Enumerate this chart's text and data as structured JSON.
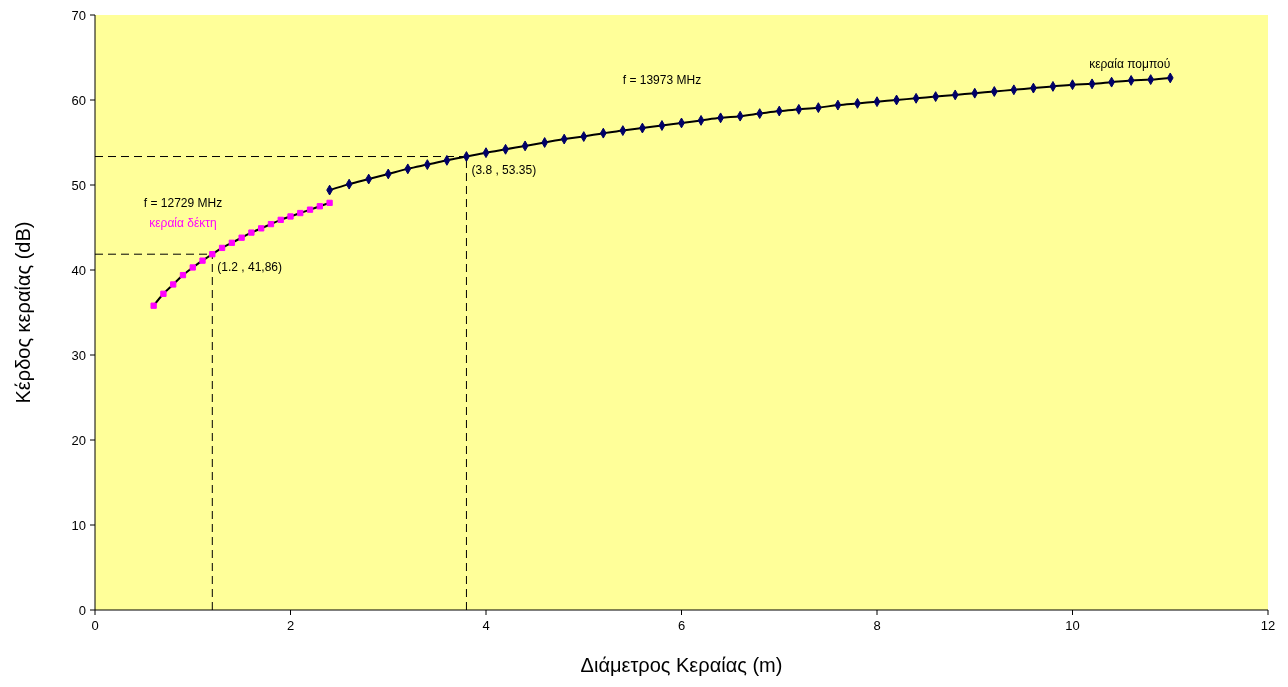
{
  "chart_data": {
    "type": "line",
    "xlabel": "Διάμετρος Κεραίας (m)",
    "ylabel": "Κέρδος κεραίας (dB)",
    "xlim": [
      0,
      12
    ],
    "xticks": [
      0,
      2,
      4,
      6,
      8,
      10,
      12
    ],
    "ylim": [
      0,
      70
    ],
    "yticks": [
      0,
      10,
      20,
      30,
      40,
      50,
      60,
      70
    ],
    "grid": false,
    "line_style": "solid",
    "series": [
      {
        "name": "κεραία δέκτη",
        "color": "#ff00ff",
        "marker": "square",
        "x": [
          0.6,
          0.7,
          0.8,
          0.9,
          1.0,
          1.1,
          1.2,
          1.3,
          1.4,
          1.5,
          1.6,
          1.7,
          1.8,
          1.9,
          2.0,
          2.1,
          2.2,
          2.3,
          2.4
        ],
        "values": [
          35.8,
          37.2,
          38.3,
          39.4,
          40.3,
          41.1,
          41.86,
          42.6,
          43.2,
          43.8,
          44.4,
          44.9,
          45.4,
          45.9,
          46.3,
          46.7,
          47.1,
          47.5,
          47.9
        ]
      },
      {
        "name": "κεραία πομπού",
        "color": "#000066",
        "marker": "diamond",
        "x": [
          2.4,
          2.6,
          2.8,
          3.0,
          3.2,
          3.4,
          3.6,
          3.8,
          4.0,
          4.2,
          4.4,
          4.6,
          4.8,
          5.0,
          5.2,
          5.4,
          5.6,
          5.8,
          6.0,
          6.2,
          6.4,
          6.6,
          6.8,
          7.0,
          7.2,
          7.4,
          7.6,
          7.8,
          8.0,
          8.2,
          8.4,
          8.6,
          8.8,
          9.0,
          9.2,
          9.4,
          9.6,
          9.8,
          10.0,
          10.2,
          10.4,
          10.6,
          10.8,
          11.0
        ],
        "values": [
          49.4,
          50.1,
          50.7,
          51.3,
          51.9,
          52.4,
          52.9,
          53.35,
          53.8,
          54.2,
          54.6,
          55.0,
          55.4,
          55.7,
          56.1,
          56.4,
          56.7,
          57.0,
          57.3,
          57.6,
          57.9,
          58.1,
          58.4,
          58.7,
          58.9,
          59.1,
          59.4,
          59.6,
          59.8,
          60.0,
          60.2,
          60.4,
          60.6,
          60.8,
          61.0,
          61.2,
          61.4,
          61.6,
          61.8,
          61.9,
          62.1,
          62.3,
          62.4,
          62.6
        ]
      }
    ],
    "ref_lines": [
      {
        "axis": "x",
        "value": 1.2,
        "label": null,
        "line_style": "dashed",
        "color": "#000000"
      },
      {
        "axis": "y",
        "value": 41.86,
        "label": null,
        "line_style": "dashed",
        "color": "#000000"
      },
      {
        "axis": "x",
        "value": 3.8,
        "label": null,
        "line_style": "dashed",
        "color": "#000000"
      },
      {
        "axis": "y",
        "value": 53.35,
        "label": null,
        "line_style": "dashed",
        "color": "#000000"
      }
    ],
    "annotations": [
      {
        "text": "(1.2 , 41,86)",
        "x": 1.2,
        "y": 41.86
      },
      {
        "text": "(3.8 , 53.35)",
        "x": 3.8,
        "y": 53.35
      },
      "f = 12729 MHz",
      "f = 13973 MHz"
    ]
  }
}
